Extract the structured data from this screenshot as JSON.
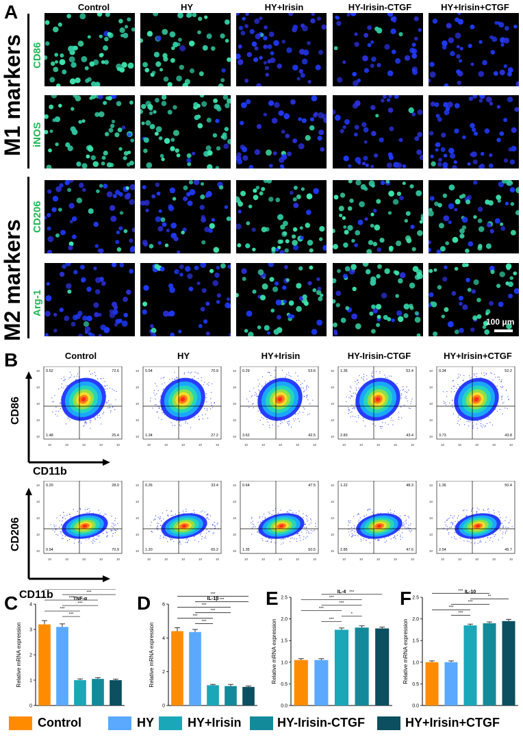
{
  "panels": {
    "A": "A",
    "B": "B",
    "C": "C",
    "D": "D",
    "E": "E",
    "F": "F"
  },
  "groups": [
    "Control",
    "HY",
    "HY+Irisin",
    "HY-Irisin-CTGF",
    "HY+Irisin+CTGF"
  ],
  "colors": {
    "Control": "#ff8c00",
    "HY": "#5aa9ff",
    "HY+Irisin": "#1aa7b8",
    "HY-Irisin-CTGF": "#138a9a",
    "HY+Irisin+CTGF": "#0b4f60"
  },
  "panelA": {
    "m1_title": "M1 markers",
    "m2_title": "M2 markers",
    "rows": [
      "CD86",
      "iNOS",
      "CD206",
      "Arg-1"
    ],
    "scale_bar": "100 μm"
  },
  "panelB": {
    "top": {
      "y_label": "CD86",
      "x_label": "CD11b",
      "quadrants": [
        {
          "ul": "0.52",
          "ur": "72.6",
          "ll": "1.48",
          "lr": "25.4"
        },
        {
          "ul": "0.54",
          "ur": "70.9",
          "ll": "1.34",
          "lr": "27.2"
        },
        {
          "ul": "0.29",
          "ur": "53.6",
          "ll": "3.62",
          "lr": "42.5"
        },
        {
          "ul": "1.36",
          "ur": "52.4",
          "ll": "2.83",
          "lr": "43.4"
        },
        {
          "ul": "0.34",
          "ur": "52.2",
          "ll": "3.73",
          "lr": "43.8"
        }
      ]
    },
    "bottom": {
      "y_label": "CD206",
      "x_label": "CD11b",
      "quadrants": [
        {
          "ul": "0.20",
          "ur": "28.0",
          "ll": "0.94",
          "lr": "70.9"
        },
        {
          "ul": "0.26",
          "ur": "33.4",
          "ll": "1.20",
          "lr": "65.2"
        },
        {
          "ul": "0.64",
          "ur": "47.5",
          "ll": "1.35",
          "lr": "50.5"
        },
        {
          "ul": "1.22",
          "ur": "48.3",
          "ll": "2.85",
          "lr": "47.6"
        },
        {
          "ul": "1.36",
          "ur": "50.4",
          "ll": "2.54",
          "lr": "45.7"
        }
      ]
    }
  },
  "chart_data": [
    {
      "type": "bar",
      "title": "TNF-α",
      "ylabel": "Relative mRNA expression",
      "ylim": [
        0,
        4
      ],
      "yticks": [
        "0",
        "1",
        "2",
        "3",
        "4"
      ],
      "categories": [
        "Control",
        "HY",
        "HY+Irisin",
        "HY-Irisin-CTGF",
        "HY+Irisin+CTGF"
      ],
      "values": [
        3.2,
        3.1,
        1.0,
        1.05,
        1.0
      ],
      "errors": [
        0.15,
        0.12,
        0.05,
        0.05,
        0.04
      ],
      "sig": [
        {
          "a": 0,
          "b": 4,
          "label": "***"
        },
        {
          "a": 0,
          "b": 3,
          "label": "***"
        },
        {
          "a": 0,
          "b": 2,
          "label": "***"
        },
        {
          "a": 1,
          "b": 4,
          "label": "***"
        },
        {
          "a": 1,
          "b": 3,
          "label": "***"
        },
        {
          "a": 1,
          "b": 2,
          "label": "***"
        }
      ]
    },
    {
      "type": "bar",
      "title": "IL-1β",
      "ylabel": "Relative mRNA expression",
      "ylim": [
        0,
        6
      ],
      "yticks": [
        "0",
        "2",
        "4",
        "6"
      ],
      "categories": [
        "Control",
        "HY",
        "HY+Irisin",
        "HY-Irisin-CTGF",
        "HY+Irisin+CTGF"
      ],
      "values": [
        4.4,
        4.35,
        1.2,
        1.15,
        1.1
      ],
      "errors": [
        0.2,
        0.15,
        0.05,
        0.1,
        0.05
      ],
      "sig": [
        {
          "a": 0,
          "b": 4,
          "label": "***"
        },
        {
          "a": 0,
          "b": 3,
          "label": "***"
        },
        {
          "a": 0,
          "b": 2,
          "label": "***"
        },
        {
          "a": 1,
          "b": 4,
          "label": "***"
        },
        {
          "a": 1,
          "b": 3,
          "label": "***"
        },
        {
          "a": 1,
          "b": 2,
          "label": "***"
        }
      ]
    },
    {
      "type": "bar",
      "title": "IL-4",
      "ylabel": "Relative mRNA expression",
      "ylim": [
        0,
        2.5
      ],
      "yticks": [
        "0.0",
        "0.5",
        "1.0",
        "1.5",
        "2.0",
        "2.5"
      ],
      "categories": [
        "Control",
        "HY",
        "HY+Irisin",
        "HY-Irisin-CTGF",
        "HY+Irisin+CTGF"
      ],
      "values": [
        1.05,
        1.05,
        1.75,
        1.8,
        1.78
      ],
      "errors": [
        0.03,
        0.03,
        0.04,
        0.04,
        0.03
      ],
      "sig": [
        {
          "a": 0,
          "b": 4,
          "label": "***"
        },
        {
          "a": 0,
          "b": 3,
          "label": "***"
        },
        {
          "a": 0,
          "b": 2,
          "label": "***"
        },
        {
          "a": 1,
          "b": 4,
          "label": "***"
        },
        {
          "a": 1,
          "b": 3,
          "label": "***"
        },
        {
          "a": 1,
          "b": 2,
          "label": "***"
        },
        {
          "a": 2,
          "b": 3,
          "label": "*"
        }
      ]
    },
    {
      "type": "bar",
      "title": "IL-10",
      "ylabel": "Relative mRNA expression",
      "ylim": [
        0,
        2.5
      ],
      "yticks": [
        "0.0",
        "0.5",
        "1.0",
        "1.5",
        "2.0",
        "2.5"
      ],
      "categories": [
        "Control",
        "HY",
        "HY+Irisin",
        "HY-Irisin-CTGF",
        "HY+Irisin+CTGF"
      ],
      "values": [
        1.0,
        1.0,
        1.85,
        1.9,
        1.95
      ],
      "errors": [
        0.03,
        0.03,
        0.03,
        0.03,
        0.04
      ],
      "sig": [
        {
          "a": 0,
          "b": 4,
          "label": "***"
        },
        {
          "a": 0,
          "b": 3,
          "label": "***"
        },
        {
          "a": 0,
          "b": 2,
          "label": "***"
        },
        {
          "a": 1,
          "b": 4,
          "label": "***"
        },
        {
          "a": 1,
          "b": 3,
          "label": "***"
        },
        {
          "a": 1,
          "b": 2,
          "label": "***"
        },
        {
          "a": 2,
          "b": 4,
          "label": "**"
        }
      ]
    }
  ]
}
